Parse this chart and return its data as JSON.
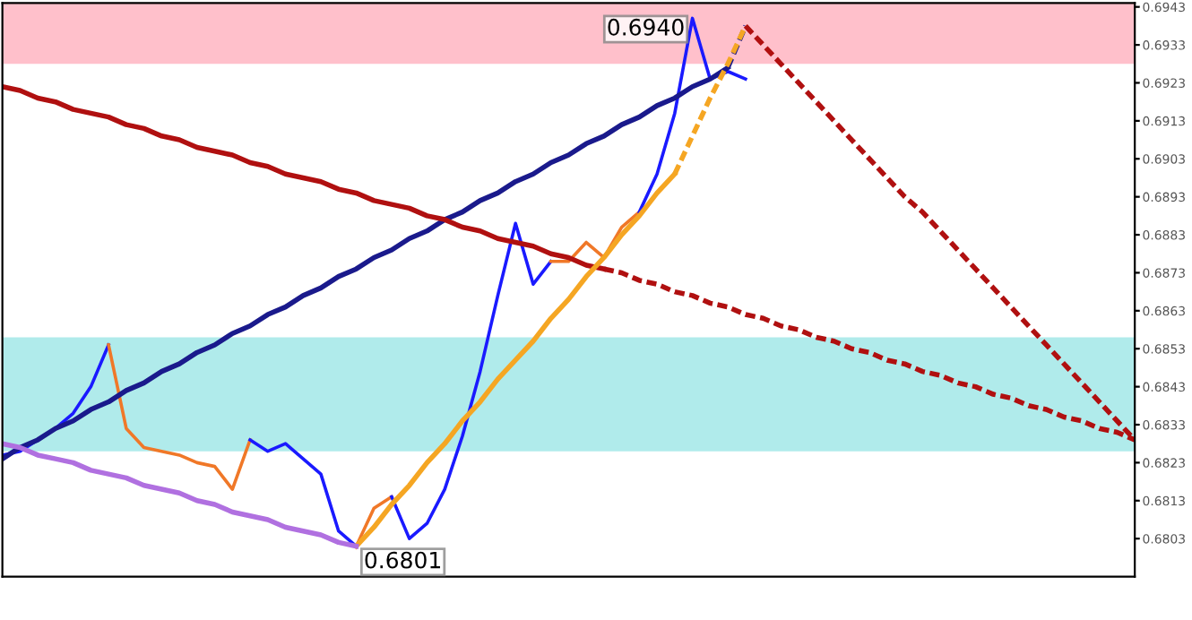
{
  "chart_data": {
    "type": "line",
    "ylim": [
      0.6793,
      0.6944
    ],
    "yticks": [
      0.6803,
      0.6813,
      0.6823,
      0.6833,
      0.6843,
      0.6853,
      0.6863,
      0.6873,
      0.6883,
      0.6893,
      0.6903,
      0.6913,
      0.6923,
      0.6933,
      0.6943
    ],
    "tick_labels": "y",
    "categories": [
      null,
      null,
      null,
      null,
      null,
      null,
      null,
      null,
      null,
      null,
      null,
      null,
      null,
      null,
      null,
      null,
      null,
      null,
      null,
      null,
      null,
      null,
      null,
      null,
      null,
      null,
      null,
      null,
      null,
      null,
      null,
      null,
      null,
      null,
      null,
      null,
      null,
      null,
      null,
      null,
      null,
      null,
      null,
      null,
      null,
      null,
      null,
      null,
      null,
      null,
      null,
      null,
      null,
      null,
      null,
      null,
      null,
      null,
      null,
      null,
      null,
      null,
      null,
      null,
      null
    ],
    "bands": [
      {
        "axis": "y",
        "from": 0.6928,
        "to": 0.6944,
        "color": "#ffc0cb"
      },
      {
        "axis": "y",
        "from": 0.6826,
        "to": 0.6856,
        "color": "#b0ebeb"
      }
    ],
    "series": [
      {
        "color": "#1a1aff",
        "line_style": "solid",
        "values": [
          0.6825,
          0.6826,
          0.6829,
          0.6832,
          0.6836,
          0.6843,
          0.6854,
          null,
          null,
          null,
          null,
          null,
          null,
          null,
          null,
          null,
          null,
          null,
          null,
          null,
          null,
          null,
          null,
          null,
          null,
          null,
          null,
          null,
          null,
          null,
          null,
          null,
          null,
          null,
          null,
          null,
          null,
          null,
          null,
          null,
          null,
          null,
          null,
          null,
          null,
          null,
          null,
          null,
          null,
          null,
          null,
          null,
          null,
          null,
          null,
          null,
          null,
          null,
          null,
          null,
          null,
          null,
          null,
          null,
          null
        ]
      },
      {
        "color": "#f07828",
        "line_style": "solid",
        "values": [
          null,
          null,
          null,
          null,
          null,
          null,
          0.6854,
          0.6832,
          0.6827,
          0.6826,
          0.6825,
          0.6823,
          0.6822,
          0.6816,
          0.6829,
          null,
          null,
          null,
          null,
          null,
          null,
          null,
          null,
          null,
          null,
          null,
          null,
          null,
          null,
          null,
          null,
          null,
          null,
          null,
          null,
          null,
          null,
          null,
          null,
          null,
          null,
          null,
          null,
          null,
          null,
          null,
          null,
          null,
          null,
          null,
          null,
          null,
          null,
          null,
          null,
          null,
          null,
          null,
          null,
          null,
          null,
          null,
          null,
          null,
          null
        ]
      },
      {
        "color": "#1a1aff",
        "line_style": "solid",
        "values": [
          null,
          null,
          null,
          null,
          null,
          null,
          null,
          null,
          null,
          null,
          null,
          null,
          null,
          null,
          0.6829,
          0.6826,
          0.6828,
          0.6824,
          0.682,
          0.6805,
          0.6801,
          null,
          null,
          null,
          null,
          null,
          null,
          null,
          null,
          null,
          null,
          null,
          null,
          null,
          null,
          null,
          null,
          null,
          null,
          null,
          null,
          null,
          null,
          null,
          null,
          null,
          null,
          null,
          null,
          null,
          null,
          null,
          null,
          null,
          null,
          null,
          null,
          null,
          null,
          null,
          null,
          null,
          null,
          null,
          null
        ]
      },
      {
        "color": "#f07828",
        "line_style": "solid",
        "values": [
          null,
          null,
          null,
          null,
          null,
          null,
          null,
          null,
          null,
          null,
          null,
          null,
          null,
          null,
          null,
          null,
          null,
          null,
          null,
          null,
          0.6801,
          0.6811,
          0.6814,
          null,
          null,
          null,
          null,
          null,
          null,
          null,
          null,
          null,
          null,
          null,
          null,
          null,
          null,
          null,
          null,
          null,
          null,
          null,
          null,
          null,
          null,
          null,
          null,
          null,
          null,
          null,
          null,
          null,
          null,
          null,
          null,
          null,
          null,
          null,
          null,
          null,
          null,
          null,
          null,
          null,
          null
        ]
      },
      {
        "color": "#1a1aff",
        "line_style": "solid",
        "values": [
          null,
          null,
          null,
          null,
          null,
          null,
          null,
          null,
          null,
          null,
          null,
          null,
          null,
          null,
          null,
          null,
          null,
          null,
          null,
          null,
          null,
          null,
          0.6814,
          0.6803,
          0.6807,
          0.6816,
          0.683,
          0.6847,
          0.6867,
          0.6886,
          0.687,
          0.6876,
          null,
          null,
          null,
          null,
          null,
          null,
          null,
          null,
          null,
          null,
          null,
          null,
          null,
          null,
          null,
          null,
          null,
          null,
          null,
          null,
          null,
          null,
          null,
          null,
          null,
          null,
          null,
          null,
          null,
          null,
          null,
          null,
          null
        ]
      },
      {
        "color": "#f07828",
        "line_style": "solid",
        "values": [
          null,
          null,
          null,
          null,
          null,
          null,
          null,
          null,
          null,
          null,
          null,
          null,
          null,
          null,
          null,
          null,
          null,
          null,
          null,
          null,
          null,
          null,
          null,
          null,
          null,
          null,
          null,
          null,
          null,
          null,
          null,
          0.6876,
          0.6876,
          0.6881,
          0.6877,
          0.6885,
          0.6889,
          null,
          null,
          null,
          null,
          null,
          null,
          null,
          null,
          null,
          null,
          null,
          null,
          null,
          null,
          null,
          null,
          null,
          null,
          null,
          null,
          null,
          null,
          null,
          null,
          null,
          null,
          null,
          null
        ]
      },
      {
        "color": "#1a1aff",
        "line_style": "solid",
        "values": [
          null,
          null,
          null,
          null,
          null,
          null,
          null,
          null,
          null,
          null,
          null,
          null,
          null,
          null,
          null,
          null,
          null,
          null,
          null,
          null,
          null,
          null,
          null,
          null,
          null,
          null,
          null,
          null,
          null,
          null,
          null,
          null,
          null,
          null,
          null,
          null,
          0.6889,
          0.6899,
          0.6915,
          0.694,
          0.6924,
          0.6926,
          0.6924,
          null,
          null,
          null,
          null,
          null,
          null,
          null,
          null,
          null,
          null,
          null,
          null,
          null,
          null,
          null,
          null,
          null,
          null,
          null,
          null,
          null,
          null
        ]
      },
      {
        "color": "#1a1a8c",
        "line_style": "solid",
        "values": [
          0.6824,
          0.6827,
          0.6829,
          0.6832,
          0.6834,
          0.6837,
          0.6839,
          0.6842,
          0.6844,
          0.6847,
          0.6849,
          0.6852,
          0.6854,
          0.6857,
          0.6859,
          0.6862,
          0.6864,
          0.6867,
          0.6869,
          0.6872,
          0.6874,
          0.6877,
          0.6879,
          0.6882,
          0.6884,
          0.6887,
          0.6889,
          0.6892,
          0.6894,
          0.6897,
          0.6899,
          0.6902,
          0.6904,
          0.6907,
          0.6909,
          0.6912,
          0.6914,
          0.6917,
          0.6919,
          0.6922,
          0.6924,
          0.6927,
          null,
          null,
          null,
          null,
          null,
          null,
          null,
          null,
          null,
          null,
          null,
          null,
          null,
          null,
          null,
          null,
          null,
          null,
          null,
          null,
          null,
          null,
          null
        ]
      },
      {
        "color": "#1a1a8c",
        "line_style": "dashed",
        "values": [
          null,
          null,
          null,
          null,
          null,
          null,
          null,
          null,
          null,
          null,
          null,
          null,
          null,
          null,
          null,
          null,
          null,
          null,
          null,
          null,
          null,
          null,
          null,
          null,
          null,
          null,
          null,
          null,
          null,
          null,
          null,
          null,
          null,
          null,
          null,
          null,
          null,
          null,
          null,
          null,
          null,
          0.6927,
          0.6938,
          null,
          null,
          null,
          null,
          null,
          null,
          null,
          null,
          null,
          null,
          null,
          null,
          null,
          null,
          null,
          null,
          null,
          null,
          null,
          null,
          null,
          null
        ]
      },
      {
        "color": "#b01010",
        "line_style": "solid",
        "values": [
          0.6922,
          0.6921,
          0.6919,
          0.6918,
          0.6916,
          0.6915,
          0.6914,
          0.6912,
          0.6911,
          0.6909,
          0.6908,
          0.6906,
          0.6905,
          0.6904,
          0.6902,
          0.6901,
          0.6899,
          0.6898,
          0.6897,
          0.6895,
          0.6894,
          0.6892,
          0.6891,
          0.689,
          0.6888,
          0.6887,
          0.6885,
          0.6884,
          0.6882,
          0.6881,
          0.688,
          0.6878,
          0.6877,
          0.6875,
          0.6874,
          null,
          null,
          null,
          null,
          null,
          null,
          null,
          null,
          null,
          null,
          null,
          null,
          null,
          null,
          null,
          null,
          null,
          null,
          null,
          null,
          null,
          null,
          null,
          null,
          null,
          null,
          null,
          null,
          null,
          null
        ]
      },
      {
        "color": "#b01010",
        "line_style": "dashed",
        "values": [
          null,
          null,
          null,
          null,
          null,
          null,
          null,
          null,
          null,
          null,
          null,
          null,
          null,
          null,
          null,
          null,
          null,
          null,
          null,
          null,
          null,
          null,
          null,
          null,
          null,
          null,
          null,
          null,
          null,
          null,
          null,
          null,
          null,
          null,
          0.6874,
          0.6873,
          0.6871,
          0.687,
          0.6868,
          0.6867,
          0.6865,
          0.6864,
          0.6862,
          0.6861,
          0.6859,
          0.6858,
          0.6856,
          0.6855,
          0.6853,
          0.6852,
          0.685,
          0.6849,
          0.6847,
          0.6846,
          0.6844,
          0.6843,
          0.6841,
          0.684,
          0.6838,
          0.6837,
          0.6835,
          0.6834,
          0.6832,
          0.6831,
          0.6829
        ]
      },
      {
        "color": "#f5a623",
        "line_style": "solid",
        "values": [
          null,
          null,
          null,
          null,
          null,
          null,
          null,
          null,
          null,
          null,
          null,
          null,
          null,
          null,
          null,
          null,
          null,
          null,
          null,
          null,
          0.6801,
          0.6806,
          0.6812,
          0.6817,
          0.6823,
          0.6828,
          0.6834,
          0.6839,
          0.6845,
          0.685,
          0.6855,
          0.6861,
          0.6866,
          0.6872,
          0.6877,
          0.6883,
          0.6888,
          0.6894,
          0.6899,
          null,
          null,
          null,
          null,
          null,
          null,
          null,
          null,
          null,
          null,
          null,
          null,
          null,
          null,
          null,
          null,
          null,
          null,
          null,
          null,
          null,
          null,
          null,
          null,
          null,
          null
        ]
      },
      {
        "color": "#f5a623",
        "line_style": "dashed",
        "values": [
          null,
          null,
          null,
          null,
          null,
          null,
          null,
          null,
          null,
          null,
          null,
          null,
          null,
          null,
          null,
          null,
          null,
          null,
          null,
          null,
          null,
          null,
          null,
          null,
          null,
          null,
          null,
          null,
          null,
          null,
          null,
          null,
          null,
          null,
          null,
          null,
          null,
          null,
          0.6899,
          0.6909,
          0.6919,
          0.6928,
          0.6938,
          null,
          null,
          null,
          null,
          null,
          null,
          null,
          null,
          null,
          null,
          null,
          null,
          null,
          null,
          null,
          null,
          null,
          null,
          null,
          null,
          null,
          null
        ]
      },
      {
        "color": "#b070e0",
        "line_style": "solid",
        "values": [
          0.6828,
          0.6827,
          0.6825,
          0.6824,
          0.6823,
          0.6821,
          0.682,
          0.6819,
          0.6817,
          0.6816,
          0.6815,
          0.6813,
          0.6812,
          0.681,
          0.6809,
          0.6808,
          0.6806,
          0.6805,
          0.6804,
          0.6802,
          0.6801,
          null,
          null,
          null,
          null,
          null,
          null,
          null,
          null,
          null,
          null,
          null,
          null,
          null,
          null,
          null,
          null,
          null,
          null,
          null,
          null,
          null,
          null,
          null,
          null,
          null,
          null,
          null,
          null,
          null,
          null,
          null,
          null,
          null,
          null,
          null,
          null,
          null,
          null,
          null,
          null,
          null,
          null,
          null,
          null
        ]
      },
      {
        "color": "#b01010",
        "line_style": "dashed",
        "values": [
          null,
          null,
          null,
          null,
          null,
          null,
          null,
          null,
          null,
          null,
          null,
          null,
          null,
          null,
          null,
          null,
          null,
          null,
          null,
          null,
          null,
          null,
          null,
          null,
          null,
          null,
          null,
          null,
          null,
          null,
          null,
          null,
          null,
          null,
          null,
          null,
          null,
          null,
          null,
          null,
          null,
          null,
          0.6938,
          0.6933,
          0.6928,
          0.6923,
          0.6918,
          0.6913,
          0.6908,
          0.6903,
          0.6898,
          0.6893,
          0.6889,
          0.6884,
          0.6879,
          0.6874,
          0.6869,
          0.6864,
          0.6859,
          0.6854,
          0.6849,
          0.6844,
          0.6839,
          0.6834,
          0.6829
        ]
      }
    ],
    "annotations": [
      "0.6940",
      "0.6801"
    ]
  }
}
